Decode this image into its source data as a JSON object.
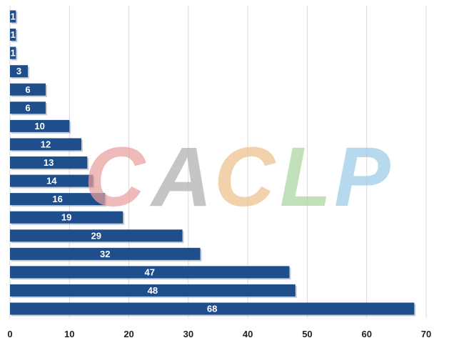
{
  "watermark": {
    "letters": [
      {
        "char": "C",
        "color": "#e8a0a0"
      },
      {
        "char": "A",
        "color": "#b0b0b0"
      },
      {
        "char": "C",
        "color": "#ecc28e"
      },
      {
        "char": "L",
        "color": "#a8d6a0"
      },
      {
        "char": "P",
        "color": "#9ccbe8"
      }
    ]
  },
  "chart_data": {
    "type": "bar",
    "orientation": "horizontal",
    "categories": [
      "",
      "",
      "",
      "",
      "",
      "",
      "",
      "",
      "",
      "",
      "",
      "",
      "",
      "",
      "",
      "",
      ""
    ],
    "values": [
      1,
      1,
      1,
      3,
      6,
      6,
      10,
      12,
      13,
      14,
      16,
      19,
      29,
      32,
      47,
      48,
      68
    ],
    "xlim": [
      0,
      70
    ],
    "xticks": [
      0,
      10,
      20,
      30,
      40,
      50,
      60,
      70
    ],
    "grid": true,
    "bar_color": "#1f4e8c",
    "gridline_color": "#d9d9d9",
    "legend": "none"
  }
}
